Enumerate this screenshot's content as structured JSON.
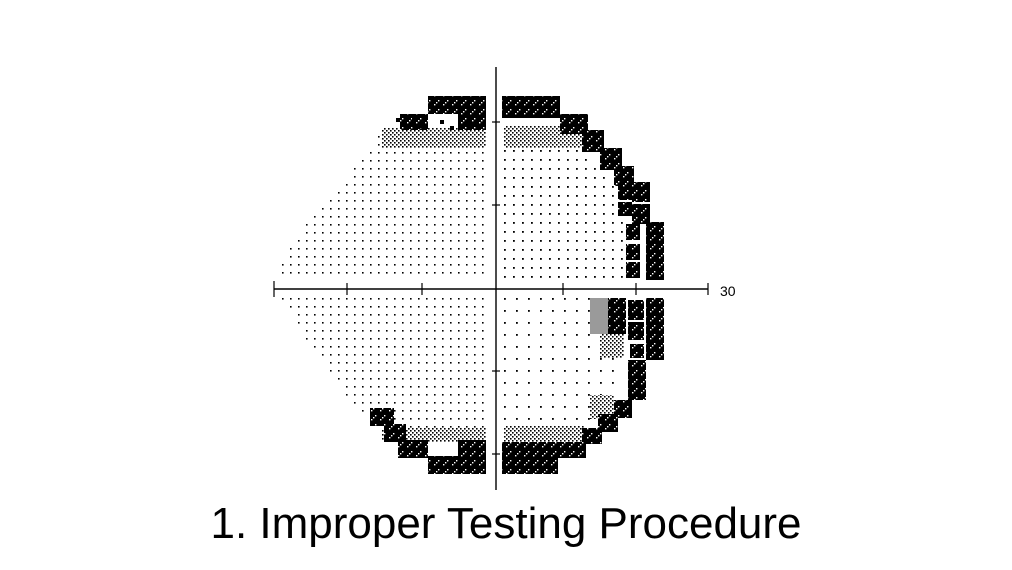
{
  "figure": {
    "axis_end_label": "30",
    "caption": "1. Improper Testing Procedure"
  },
  "colors": {
    "ink": "#000000",
    "paper": "#ffffff",
    "mid_gray": "#9a9a9a"
  }
}
